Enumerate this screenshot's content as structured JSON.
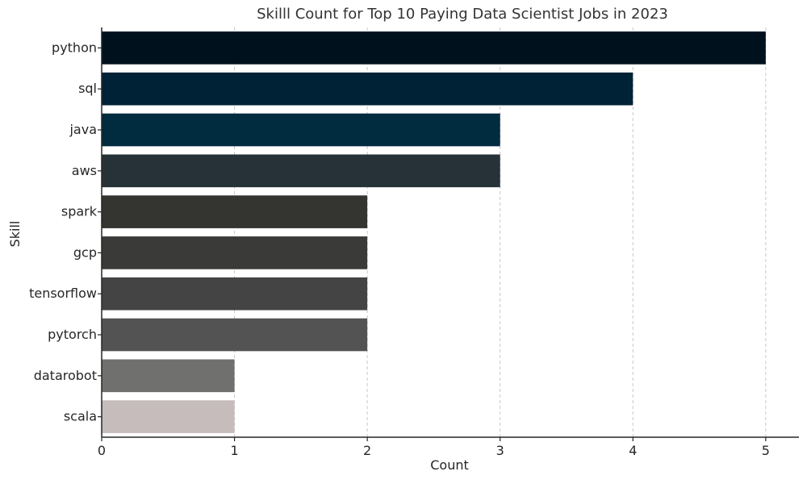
{
  "chart_data": {
    "type": "bar",
    "orientation": "horizontal",
    "title": "Skilll Count for Top 10 Paying Data Scientist Jobs in 2023",
    "xlabel": "Count",
    "ylabel": "Skill",
    "categories": [
      "python",
      "sql",
      "java",
      "aws",
      "spark",
      "gcp",
      "tensorflow",
      "pytorch",
      "datarobot",
      "scala"
    ],
    "values": [
      5,
      4,
      3,
      3,
      2,
      2,
      2,
      2,
      1,
      1
    ],
    "colors": [
      "#00111e",
      "#002236",
      "#012b3e",
      "#263238",
      "#343430",
      "#3a3a38",
      "#444444",
      "#535353",
      "#70706e",
      "#c5bcbb"
    ],
    "xlim": [
      0,
      5.25
    ],
    "xticks": [
      0,
      1,
      2,
      3,
      4,
      5
    ],
    "grid": "x-dashed",
    "legend": "none"
  }
}
